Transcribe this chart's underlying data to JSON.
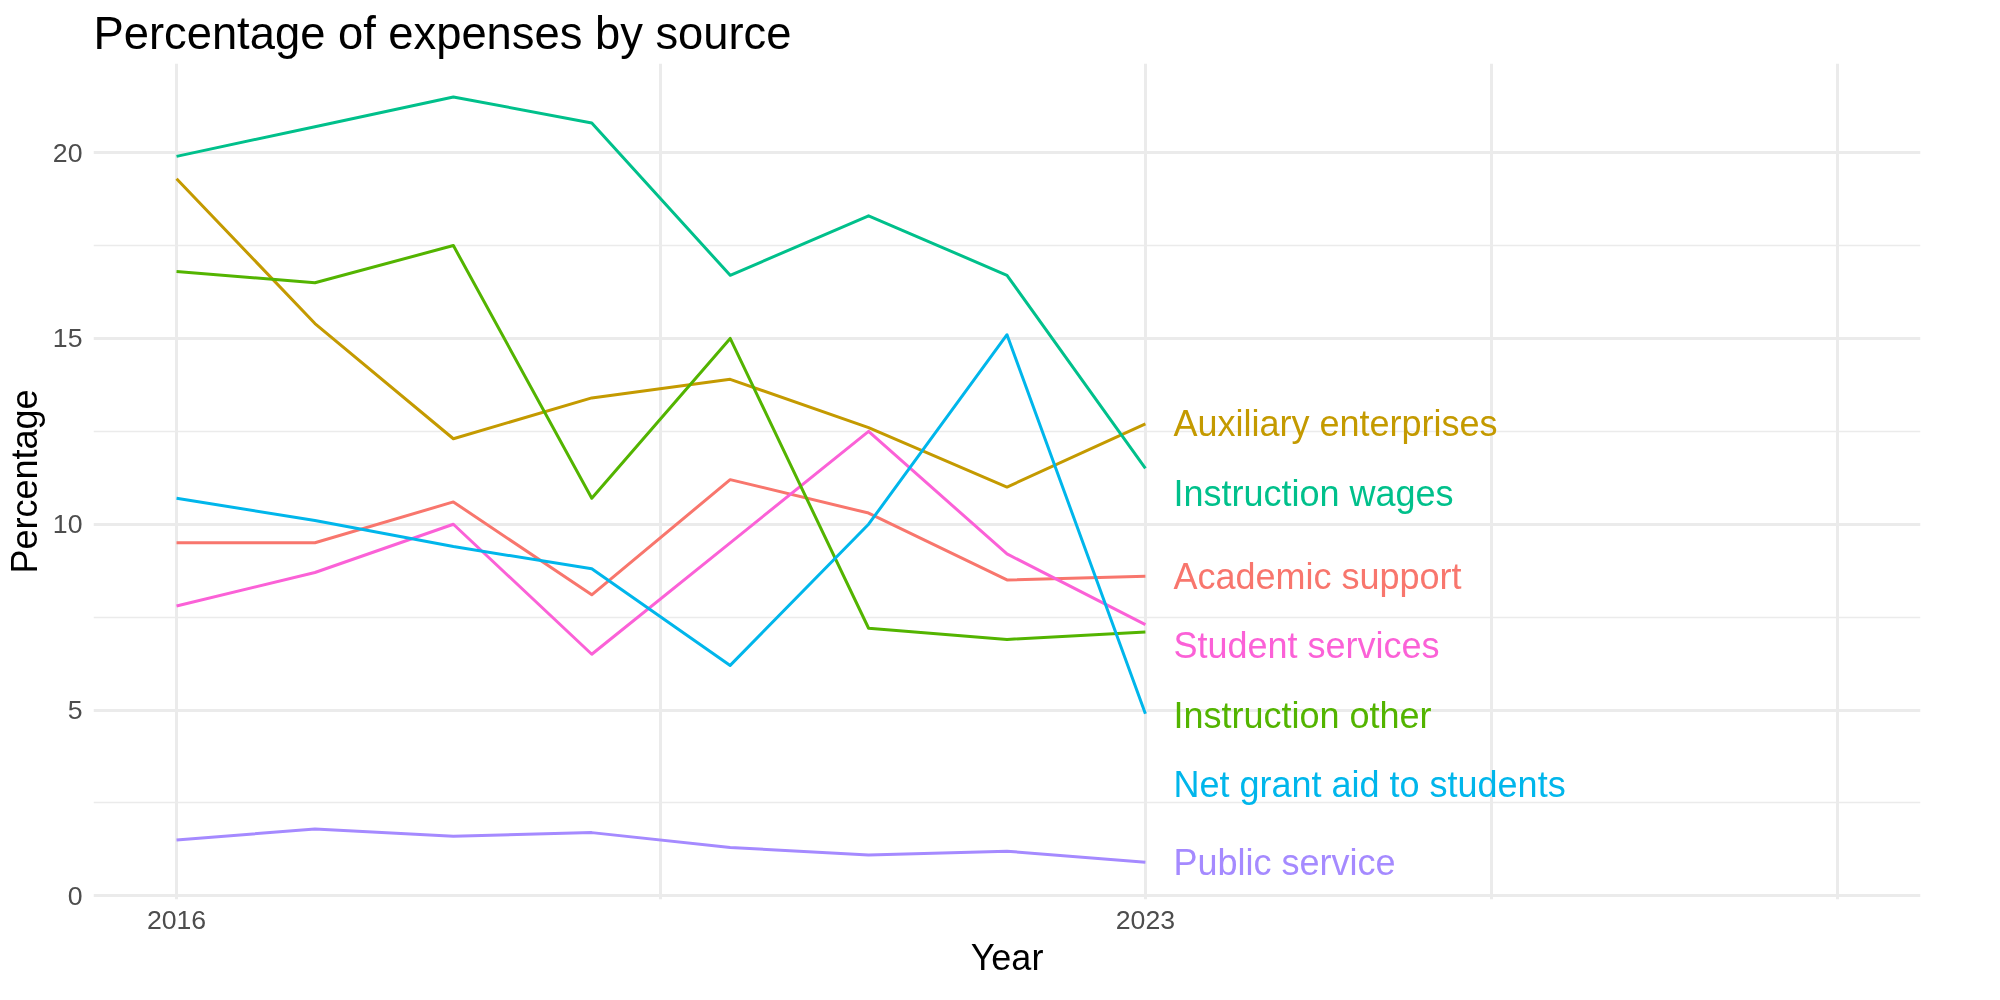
{
  "chart_data": {
    "type": "line",
    "title": "Percentage of expenses by source",
    "xlabel": "Year",
    "ylabel": "Percentage",
    "x": [
      2016,
      2017,
      2018,
      2019,
      2020,
      2021,
      2022,
      2023
    ],
    "series": [
      {
        "name": "Auxiliary enterprises",
        "color": "#c49a00",
        "values": [
          19.3,
          15.4,
          12.3,
          13.4,
          13.9,
          12.6,
          11.0,
          12.7
        ]
      },
      {
        "name": "Instruction wages",
        "color": "#00c08b",
        "values": [
          19.9,
          20.7,
          21.5,
          20.8,
          16.7,
          18.3,
          16.7,
          11.5
        ]
      },
      {
        "name": "Academic support",
        "color": "#f8766d",
        "values": [
          9.5,
          9.5,
          10.6,
          8.1,
          11.2,
          10.3,
          8.5,
          8.6
        ]
      },
      {
        "name": "Student services",
        "color": "#fb61d7",
        "values": [
          7.8,
          8.7,
          10.0,
          6.5,
          9.5,
          12.5,
          9.2,
          7.3
        ]
      },
      {
        "name": "Instruction other",
        "color": "#53b400",
        "values": [
          16.8,
          16.5,
          17.5,
          10.7,
          15.0,
          7.2,
          6.9,
          7.1
        ]
      },
      {
        "name": "Net grant aid to students",
        "color": "#00b6eb",
        "values": [
          10.7,
          10.1,
          9.4,
          8.8,
          6.2,
          10.0,
          15.1,
          4.9
        ]
      },
      {
        "name": "Public service",
        "color": "#a58aff",
        "values": [
          1.5,
          1.8,
          1.6,
          1.7,
          1.3,
          1.1,
          1.2,
          0.9
        ]
      }
    ],
    "xlim": [
      2015.4,
      2028.6
    ],
    "xticks": [
      2016,
      2023,
      {
        "value": 2019.5,
        "label": null
      },
      {
        "value": 2025.5,
        "label": null
      },
      {
        "value": 2028,
        "label": null
      }
    ],
    "ylim": [
      -0.1,
      22.4
    ],
    "yticks": [
      0,
      5,
      10,
      15,
      20
    ],
    "grid": true
  }
}
